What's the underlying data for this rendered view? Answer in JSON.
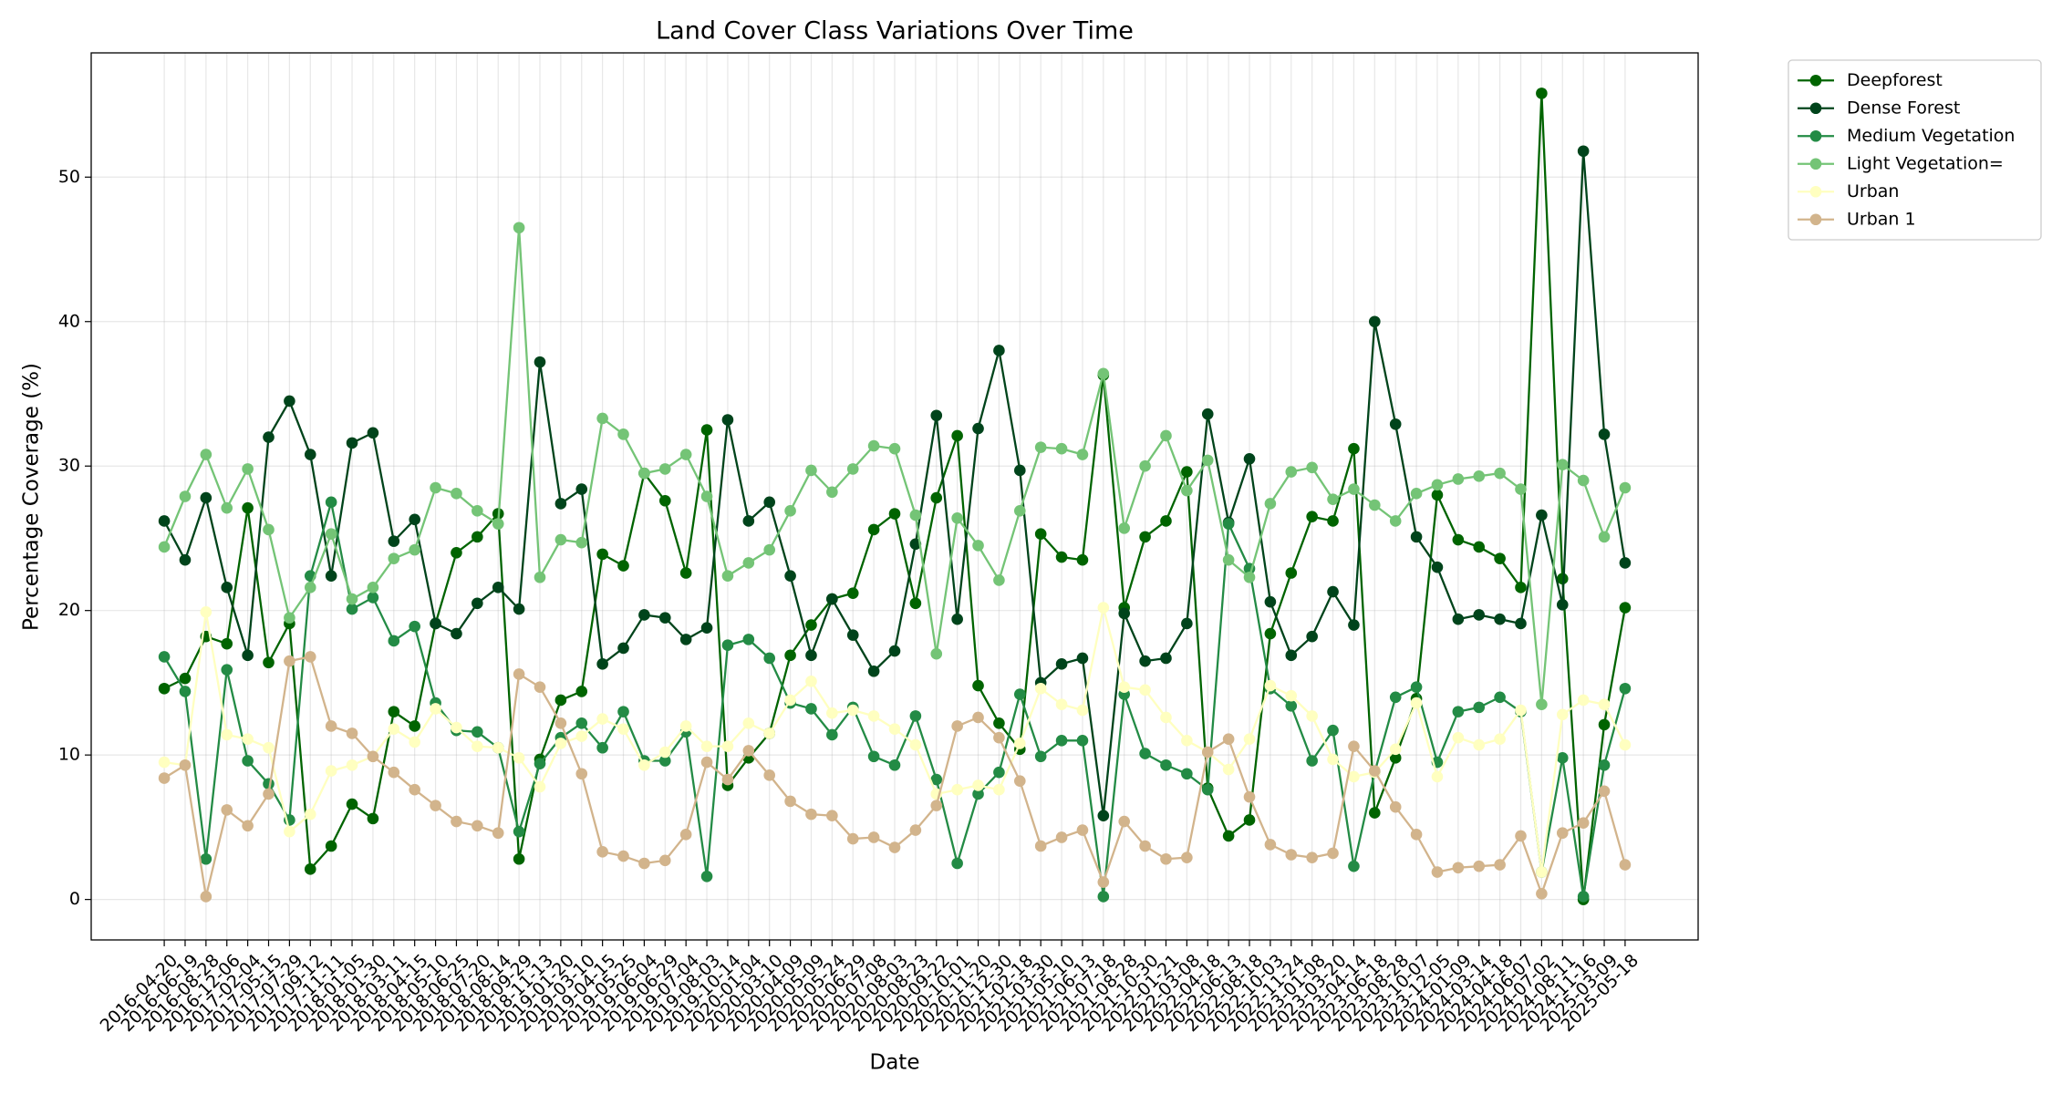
{
  "chart_data": {
    "type": "line",
    "title": "Land Cover Class Variations Over Time",
    "xlabel": "Date",
    "ylabel": "Percentage Coverage (%)",
    "categories": [
      "2016-04-20",
      "2016-06-19",
      "2016-08-28",
      "2016-12-06",
      "2017-02-04",
      "2017-05-15",
      "2017-07-29",
      "2017-09-12",
      "2017-11-11",
      "2018-01-05",
      "2018-01-30",
      "2018-03-11",
      "2018-04-15",
      "2018-05-10",
      "2018-06-25",
      "2018-07-20",
      "2018-08-14",
      "2018-09-29",
      "2018-11-13",
      "2019-01-20",
      "2019-03-10",
      "2019-04-15",
      "2019-05-25",
      "2019-06-04",
      "2019-06-29",
      "2019-07-04",
      "2019-08-03",
      "2019-10-14",
      "2020-01-04",
      "2020-03-10",
      "2020-04-09",
      "2020-05-09",
      "2020-05-24",
      "2020-06-29",
      "2020-07-08",
      "2020-08-03",
      "2020-08-23",
      "2020-09-22",
      "2020-10-01",
      "2020-11-20",
      "2020-12-30",
      "2021-02-18",
      "2021-03-30",
      "2021-05-10",
      "2021-06-13",
      "2021-07-18",
      "2021-08-28",
      "2021-10-30",
      "2022-01-21",
      "2022-03-08",
      "2022-04-18",
      "2022-06-13",
      "2022-08-18",
      "2022-10-03",
      "2022-11-24",
      "2023-01-08",
      "2023-03-20",
      "2023-04-14",
      "2023-06-18",
      "2023-08-28",
      "2023-10-07",
      "2023-12-05",
      "2024-01-09",
      "2024-03-14",
      "2024-04-18",
      "2024-06-07",
      "2024-07-02",
      "2024-08-11",
      "2024-11-16",
      "2025-03-09",
      "2025-05-18"
    ],
    "series": [
      {
        "name": "Deepforest",
        "color": "#006400",
        "values": [
          14.6,
          15.3,
          18.2,
          17.7,
          27.1,
          16.4,
          19.1,
          2.1,
          3.7,
          6.6,
          5.6,
          13,
          12,
          19.1,
          24,
          25.1,
          26.7,
          2.8,
          9.7,
          13.8,
          14.4,
          23.9,
          23.1,
          29.5,
          27.6,
          22.6,
          32.5,
          7.9,
          9.8,
          11.5,
          16.9,
          19,
          20.8,
          21.2,
          25.6,
          26.7,
          20.5,
          27.8,
          32.1,
          14.8,
          12.2,
          10.4,
          25.3,
          23.7,
          23.5,
          36.3,
          20.2,
          25.1,
          26.2,
          29.6,
          7.7,
          4.4,
          5.5,
          18.4,
          22.6,
          26.5,
          26.2,
          31.2,
          6,
          9.8,
          13.9,
          28,
          24.9,
          24.4,
          23.6,
          21.6,
          55.8,
          22.2,
          0,
          12.1,
          20.2
        ]
      },
      {
        "name": "Dense Forest",
        "color": "#00441b",
        "values": [
          26.2,
          23.5,
          27.8,
          21.6,
          16.9,
          32,
          34.5,
          30.8,
          22.4,
          31.6,
          32.3,
          24.8,
          26.3,
          19.1,
          18.4,
          20.5,
          21.6,
          20.1,
          37.2,
          27.4,
          28.4,
          16.3,
          17.4,
          19.7,
          19.5,
          18,
          18.8,
          33.2,
          26.2,
          27.5,
          22.4,
          16.9,
          20.8,
          18.3,
          15.8,
          17.2,
          24.6,
          33.5,
          19.4,
          32.6,
          38,
          29.7,
          15,
          16.3,
          16.7,
          5.8,
          19.8,
          16.5,
          16.7,
          19.1,
          33.6,
          26.1,
          30.5,
          20.6,
          16.9,
          18.2,
          21.3,
          19,
          40,
          32.9,
          25.1,
          23,
          19.4,
          19.7,
          19.4,
          19.1,
          26.6,
          20.4,
          51.8,
          32.2,
          23.3
        ]
      },
      {
        "name": "Medium Vegetation",
        "color": "#238b45",
        "values": [
          16.8,
          14.4,
          2.8,
          15.9,
          9.6,
          8,
          5.5,
          22.4,
          27.5,
          20.1,
          20.9,
          17.9,
          18.9,
          13.6,
          11.7,
          11.6,
          10.5,
          4.7,
          9.4,
          11.2,
          12.2,
          10.5,
          13,
          9.6,
          9.6,
          11.6,
          1.6,
          17.6,
          18,
          16.7,
          13.6,
          13.2,
          11.4,
          13.3,
          9.9,
          9.3,
          12.7,
          8.3,
          2.5,
          7.3,
          8.8,
          14.2,
          9.9,
          11,
          11,
          0.2,
          14.2,
          10.1,
          9.3,
          8.7,
          7.6,
          26,
          22.9,
          14.6,
          13.4,
          9.6,
          11.7,
          2.3,
          8.8,
          14,
          14.7,
          9.5,
          13,
          13.3,
          14,
          13,
          1.9,
          9.8,
          0.2,
          9.3,
          14.6
        ]
      },
      {
        "name": "Light Vegetation=",
        "color": "#74c476",
        "values": [
          24.4,
          27.9,
          30.8,
          27.1,
          29.8,
          25.6,
          19.5,
          21.6,
          25.3,
          20.8,
          21.6,
          23.6,
          24.2,
          28.5,
          28.1,
          26.9,
          26,
          46.5,
          22.3,
          24.9,
          24.7,
          33.3,
          32.2,
          29.5,
          29.8,
          30.8,
          27.9,
          22.4,
          23.3,
          24.2,
          26.9,
          29.7,
          28.2,
          29.8,
          31.4,
          31.2,
          26.6,
          17,
          26.4,
          24.5,
          22.1,
          26.9,
          31.3,
          31.2,
          30.8,
          36.4,
          25.7,
          30,
          32.1,
          28.3,
          30.4,
          23.5,
          22.3,
          27.4,
          29.6,
          29.9,
          27.7,
          28.4,
          27.3,
          26.2,
          28.1,
          28.7,
          29.1,
          29.3,
          29.5,
          28.4,
          13.5,
          30.1,
          29,
          25.1,
          28.5
        ]
      },
      {
        "name": "Urban",
        "color": "#ffffc0",
        "values": [
          9.5,
          9.3,
          19.9,
          11.4,
          11.1,
          10.5,
          4.7,
          5.9,
          8.9,
          9.3,
          9.9,
          11.8,
          10.9,
          13.2,
          11.9,
          10.6,
          10.5,
          9.8,
          7.8,
          10.8,
          11.3,
          12.5,
          11.8,
          9.3,
          10.2,
          12,
          10.6,
          10.6,
          12.2,
          11.5,
          13.8,
          15.1,
          12.9,
          13.1,
          12.7,
          11.8,
          10.7,
          7.3,
          7.6,
          7.9,
          7.6,
          10.8,
          14.6,
          13.5,
          13.1,
          20.2,
          14.7,
          14.5,
          12.6,
          11,
          10.2,
          9,
          11.1,
          14.8,
          14.1,
          12.7,
          9.7,
          8.5,
          8.8,
          10.4,
          13.6,
          8.5,
          11.2,
          10.7,
          11.1,
          13.1,
          1.9,
          12.8,
          13.8,
          13.5,
          10.7
        ]
      },
      {
        "name": "Urban 1",
        "color": "#d2b48c",
        "values": [
          8.4,
          9.3,
          0.2,
          6.2,
          5.1,
          7.3,
          16.5,
          16.8,
          12,
          11.5,
          9.9,
          8.8,
          7.6,
          6.5,
          5.4,
          5.1,
          4.6,
          15.6,
          14.7,
          12.2,
          8.7,
          3.3,
          3,
          2.5,
          2.7,
          4.5,
          9.5,
          8.3,
          10.3,
          8.6,
          6.8,
          5.9,
          5.8,
          4.2,
          4.3,
          3.6,
          4.8,
          6.5,
          12,
          12.6,
          11.2,
          8.2,
          3.7,
          4.3,
          4.8,
          1.2,
          5.4,
          3.7,
          2.8,
          2.9,
          10.2,
          11.1,
          7.1,
          3.8,
          3.1,
          2.9,
          3.2,
          10.6,
          8.9,
          6.4,
          4.5,
          1.9,
          2.2,
          2.3,
          2.4,
          4.4,
          0.4,
          4.6,
          5.3,
          7.5,
          2.4
        ]
      }
    ],
    "ylim": [
      -2.8,
      58.6
    ],
    "yticks": [
      0,
      10,
      20,
      30,
      40,
      50
    ],
    "grid": true,
    "legend": "outside-upper-right"
  }
}
